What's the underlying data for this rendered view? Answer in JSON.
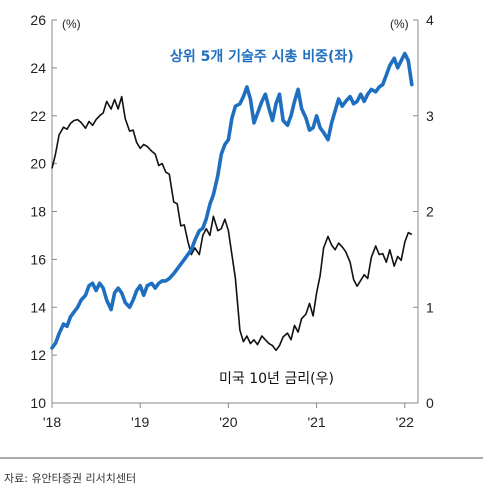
{
  "chart_data": {
    "type": "line",
    "x_ticks": [
      "'18",
      "'19",
      "'20",
      "'21",
      "'22"
    ],
    "left_axis": {
      "unit": "(%)",
      "ticks": [
        "10",
        "12",
        "14",
        "16",
        "18",
        "20",
        "22",
        "24",
        "26"
      ],
      "range": [
        10,
        26
      ]
    },
    "right_axis": {
      "unit": "(%)",
      "ticks": [
        "0",
        "1",
        "2",
        "3",
        "4"
      ],
      "range": [
        0,
        4
      ]
    },
    "colors": {
      "share": "#1F6FC0",
      "rate": "#111111"
    },
    "series": [
      {
        "name": "상위 5개 기술주 시총 비중(좌)",
        "axis": "left",
        "x": [
          2018.0,
          2018.04,
          2018.08,
          2018.13,
          2018.17,
          2018.21,
          2018.25,
          2018.29,
          2018.33,
          2018.38,
          2018.42,
          2018.46,
          2018.5,
          2018.54,
          2018.58,
          2018.62,
          2018.67,
          2018.71,
          2018.75,
          2018.79,
          2018.83,
          2018.88,
          2018.92,
          2018.96,
          2019.0,
          2019.04,
          2019.08,
          2019.13,
          2019.17,
          2019.21,
          2019.25,
          2019.29,
          2019.33,
          2019.38,
          2019.42,
          2019.46,
          2019.5,
          2019.54,
          2019.58,
          2019.62,
          2019.67,
          2019.71,
          2019.75,
          2019.79,
          2019.83,
          2019.88,
          2019.92,
          2019.96,
          2020.0,
          2020.04,
          2020.08,
          2020.13,
          2020.17,
          2020.21,
          2020.25,
          2020.29,
          2020.33,
          2020.38,
          2020.42,
          2020.46,
          2020.5,
          2020.54,
          2020.58,
          2020.62,
          2020.67,
          2020.71,
          2020.75,
          2020.79,
          2020.83,
          2020.88,
          2020.92,
          2020.96,
          2021.0,
          2021.04,
          2021.08,
          2021.13,
          2021.17,
          2021.21,
          2021.25,
          2021.29,
          2021.33,
          2021.38,
          2021.42,
          2021.46,
          2021.5,
          2021.54,
          2021.58,
          2021.62,
          2021.67,
          2021.71,
          2021.75,
          2021.79,
          2021.83,
          2021.88,
          2021.92,
          2021.96,
          2022.0,
          2022.04,
          2022.08
        ],
        "values": [
          12.3,
          12.5,
          12.9,
          13.3,
          13.2,
          13.6,
          13.8,
          14.0,
          14.3,
          14.5,
          14.9,
          15.0,
          14.7,
          15.0,
          14.8,
          14.3,
          13.9,
          14.6,
          14.8,
          14.6,
          14.2,
          14.0,
          14.3,
          14.7,
          14.9,
          14.5,
          14.9,
          15.0,
          14.8,
          15.0,
          15.1,
          15.1,
          15.2,
          15.4,
          15.6,
          15.8,
          16.0,
          16.2,
          16.4,
          16.8,
          17.2,
          17.3,
          17.7,
          18.3,
          18.7,
          19.5,
          20.4,
          20.8,
          21.0,
          21.9,
          22.4,
          22.5,
          22.8,
          23.2,
          22.7,
          21.7,
          22.1,
          22.6,
          22.9,
          22.3,
          21.8,
          22.5,
          22.9,
          21.8,
          21.6,
          22.0,
          22.6,
          23.1,
          22.3,
          21.9,
          21.4,
          21.5,
          22.0,
          21.5,
          21.3,
          21.0,
          21.7,
          22.2,
          22.7,
          22.4,
          22.6,
          22.8,
          22.5,
          22.6,
          22.9,
          22.6,
          22.9,
          23.1,
          23.0,
          23.2,
          23.3,
          23.7,
          24.1,
          24.4,
          24.0,
          24.3,
          24.6,
          24.3,
          23.3
        ]
      },
      {
        "name": "미국 10년 금리(우)",
        "axis": "right",
        "x": [
          2018.0,
          2018.04,
          2018.08,
          2018.13,
          2018.17,
          2018.21,
          2018.25,
          2018.29,
          2018.33,
          2018.38,
          2018.42,
          2018.46,
          2018.5,
          2018.54,
          2018.58,
          2018.62,
          2018.67,
          2018.71,
          2018.75,
          2018.79,
          2018.83,
          2018.88,
          2018.92,
          2018.96,
          2019.0,
          2019.04,
          2019.08,
          2019.13,
          2019.17,
          2019.21,
          2019.25,
          2019.29,
          2019.33,
          2019.38,
          2019.42,
          2019.46,
          2019.5,
          2019.54,
          2019.58,
          2019.62,
          2019.67,
          2019.71,
          2019.75,
          2019.79,
          2019.83,
          2019.88,
          2019.92,
          2019.96,
          2020.0,
          2020.04,
          2020.08,
          2020.13,
          2020.17,
          2020.21,
          2020.25,
          2020.29,
          2020.33,
          2020.38,
          2020.42,
          2020.46,
          2020.5,
          2020.54,
          2020.58,
          2020.62,
          2020.67,
          2020.71,
          2020.75,
          2020.79,
          2020.83,
          2020.88,
          2020.92,
          2020.96,
          2021.0,
          2021.04,
          2021.08,
          2021.13,
          2021.17,
          2021.21,
          2021.25,
          2021.29,
          2021.33,
          2021.38,
          2021.42,
          2021.46,
          2021.5,
          2021.54,
          2021.58,
          2021.62,
          2021.67,
          2021.71,
          2021.75,
          2021.79,
          2021.83,
          2021.88,
          2021.92,
          2021.96,
          2022.0,
          2022.04,
          2022.08
        ],
        "values": [
          2.45,
          2.6,
          2.8,
          2.88,
          2.86,
          2.92,
          2.95,
          2.96,
          2.93,
          2.87,
          2.94,
          2.9,
          2.96,
          3.0,
          3.03,
          3.15,
          3.07,
          3.17,
          3.07,
          3.2,
          2.97,
          2.84,
          2.85,
          2.72,
          2.66,
          2.7,
          2.68,
          2.63,
          2.6,
          2.48,
          2.5,
          2.41,
          2.39,
          2.1,
          2.08,
          1.85,
          1.86,
          1.69,
          1.55,
          1.62,
          1.55,
          1.75,
          1.82,
          1.75,
          1.95,
          1.8,
          1.82,
          1.92,
          1.8,
          1.55,
          1.3,
          0.76,
          0.64,
          0.7,
          0.62,
          0.66,
          0.61,
          0.7,
          0.66,
          0.62,
          0.6,
          0.55,
          0.6,
          0.69,
          0.73,
          0.66,
          0.81,
          0.74,
          0.88,
          0.93,
          1.04,
          0.91,
          1.15,
          1.33,
          1.62,
          1.74,
          1.65,
          1.6,
          1.67,
          1.63,
          1.58,
          1.47,
          1.29,
          1.22,
          1.28,
          1.34,
          1.3,
          1.52,
          1.64,
          1.55,
          1.56,
          1.47,
          1.6,
          1.43,
          1.53,
          1.49,
          1.68,
          1.78,
          1.76
        ]
      }
    ],
    "annotations": {
      "share_label": "상위 5개 기술주 시총 비중(좌)",
      "rate_label": "미국 10년 금리(우)"
    },
    "source": "자료: 유안타증권 리서치센터"
  }
}
